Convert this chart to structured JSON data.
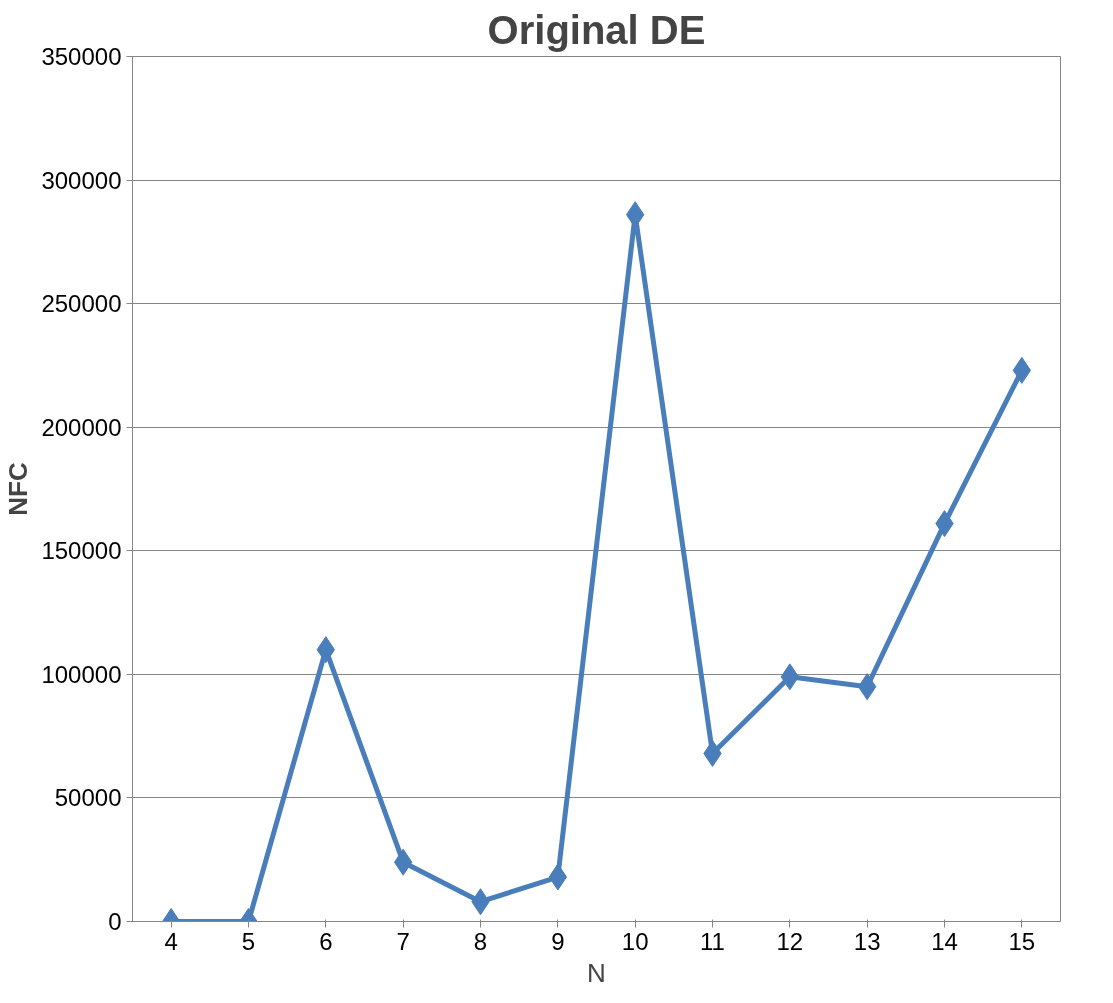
{
  "chart_data": {
    "type": "line",
    "title": "Original DE",
    "xlabel": "N",
    "ylabel": "NFC",
    "categories": [
      "4",
      "5",
      "6",
      "7",
      "8",
      "9",
      "10",
      "11",
      "12",
      "13",
      "14",
      "15"
    ],
    "series": [
      {
        "color": "#4a7ebb",
        "values": [
          0,
          0,
          110000,
          24000,
          8000,
          18000,
          286000,
          68000,
          99000,
          95000,
          161000,
          223000
        ]
      }
    ],
    "ylim": [
      0,
      350000
    ],
    "yticks": [
      0,
      50000,
      100000,
      150000,
      200000,
      250000,
      300000,
      350000
    ],
    "grid": "y",
    "marker": "diamond",
    "line_style": "solid"
  }
}
